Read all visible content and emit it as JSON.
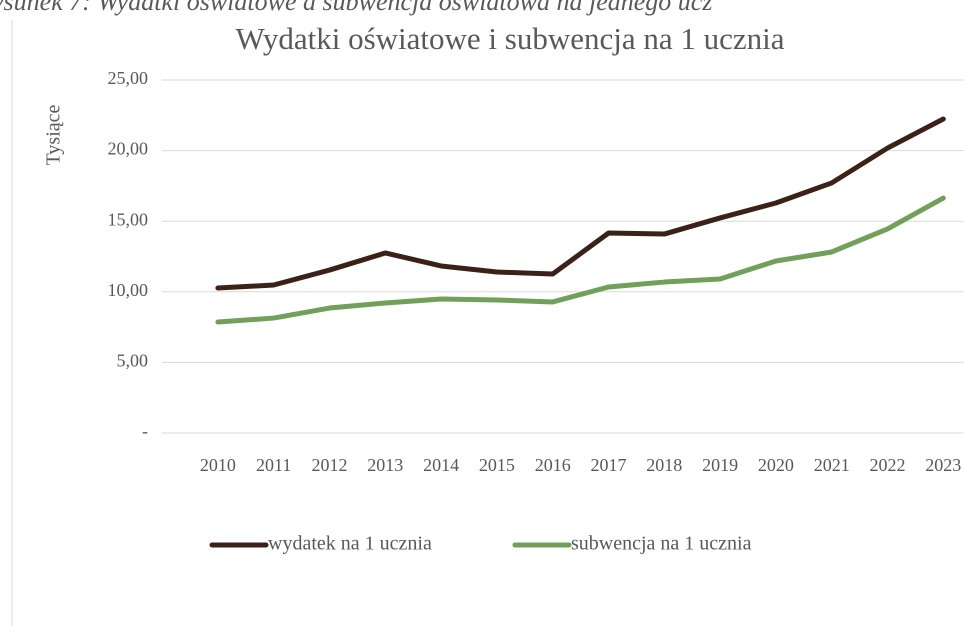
{
  "chart_data": {
    "type": "line",
    "caption": "ysunek 7: Wydatki oświatowe a subwencja oświatowa na jednego ucz",
    "title": "Wydatki oświatowe i subwencja na 1 ucznia",
    "y_label": "Tysiące",
    "categories": [
      "2010",
      "2011",
      "2012",
      "2013",
      "2014",
      "2015",
      "2016",
      "2017",
      "2018",
      "2019",
      "2020",
      "2021",
      "2022",
      "2023"
    ],
    "series": [
      {
        "name": "wydatek na 1 ucznia",
        "color": "#3b2117",
        "values": [
          10.27,
          10.48,
          11.54,
          12.75,
          11.83,
          11.4,
          11.26,
          14.16,
          14.09,
          15.23,
          16.29,
          17.71,
          20.18,
          22.24
        ]
      },
      {
        "name": "subwencja na 1 ucznia",
        "color": "#70a05a",
        "values": [
          7.86,
          8.14,
          8.85,
          9.21,
          9.49,
          9.42,
          9.28,
          10.34,
          10.69,
          10.91,
          12.18,
          12.82,
          14.45,
          16.64
        ]
      }
    ],
    "ylim": [
      0,
      25
    ],
    "yticks": [
      {
        "value": 0,
        "label": "-"
      },
      {
        "value": 5,
        "label": "5,00"
      },
      {
        "value": 10,
        "label": "10,00"
      },
      {
        "value": 15,
        "label": "15,00"
      },
      {
        "value": 20,
        "label": "20,00"
      },
      {
        "value": 25,
        "label": "25,00"
      }
    ],
    "grid": true,
    "legend": "bottom"
  }
}
